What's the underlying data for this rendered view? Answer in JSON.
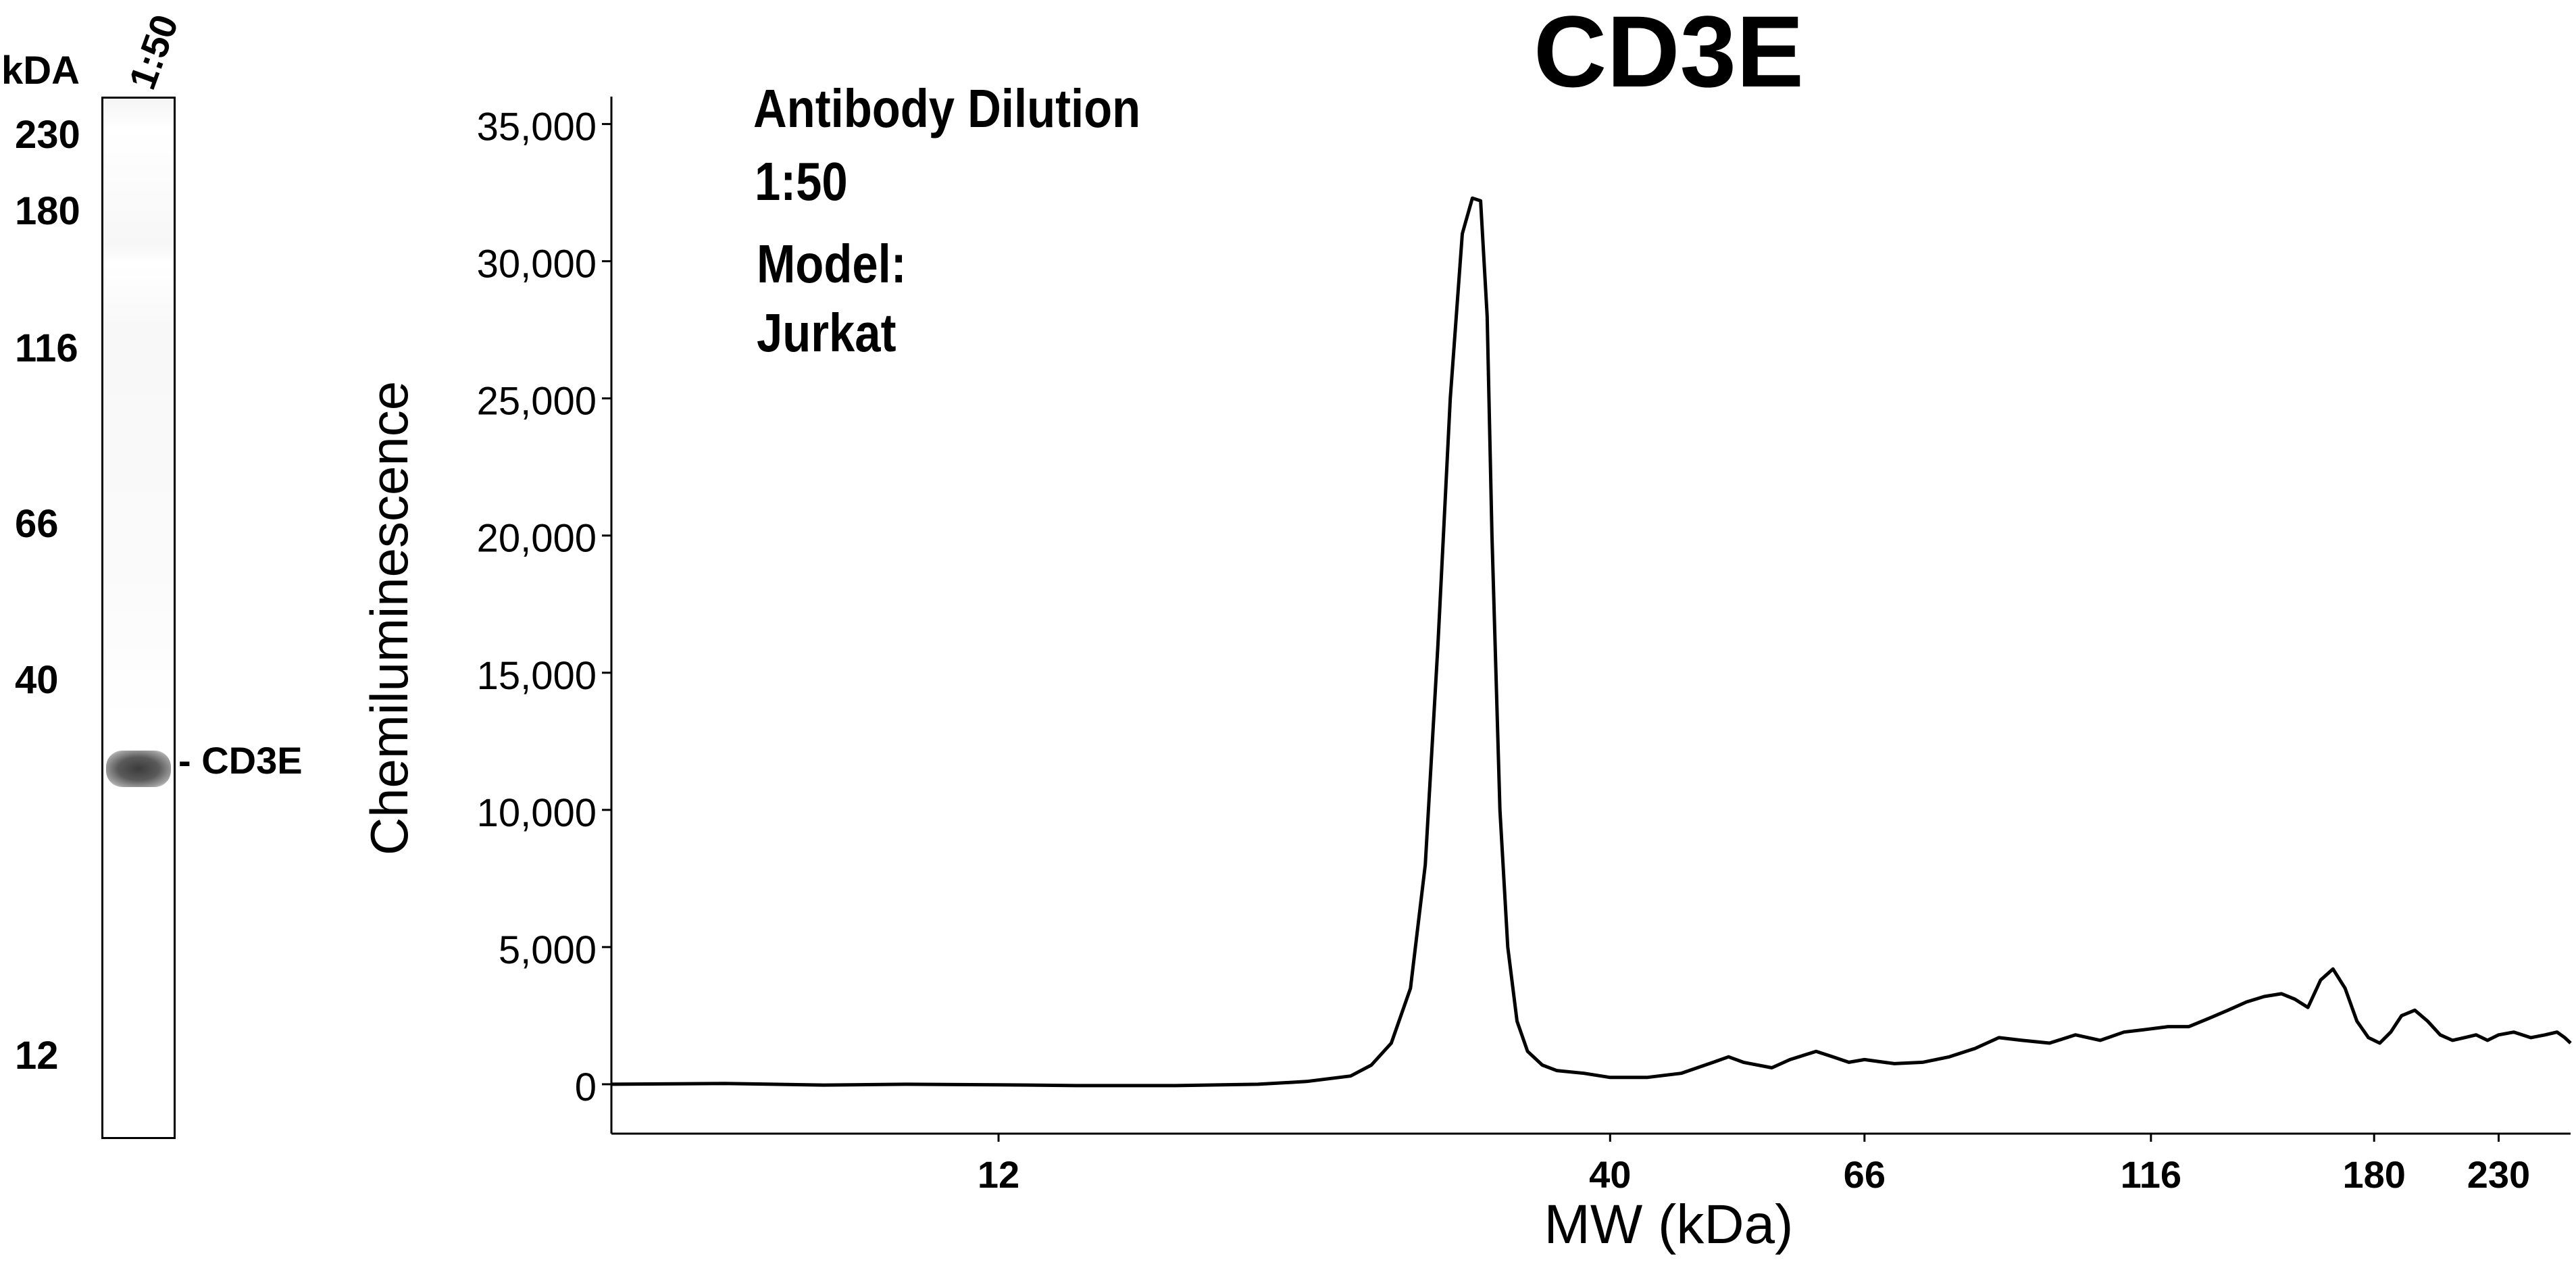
{
  "blot": {
    "unit_label": "kDA",
    "lane_label": "1:50",
    "ladder": [
      {
        "label": "230",
        "kda": 230
      },
      {
        "label": "180",
        "kda": 180
      },
      {
        "label": "116",
        "kda": 116
      },
      {
        "label": "66",
        "kda": 66
      },
      {
        "label": "40",
        "kda": 40
      },
      {
        "label": "12",
        "kda": 12
      }
    ],
    "band_label": "- CD3E"
  },
  "chart_data": {
    "type": "line",
    "title": "CD3E",
    "annotations": [
      "Antibody Dilution",
      "1:50",
      "Model:",
      "Jurkat"
    ],
    "xlabel": "MW (kDa)",
    "ylabel": "Chemiluminescence",
    "x_scale": "log",
    "xlim": [
      5.6,
      265
    ],
    "ylim": [
      -1800,
      36000
    ],
    "x_ticks": [
      {
        "label": "12",
        "value": 12
      },
      {
        "label": "40",
        "value": 40
      },
      {
        "label": "66",
        "value": 66
      },
      {
        "label": "116",
        "value": 116
      },
      {
        "label": "180",
        "value": 180
      },
      {
        "label": "230",
        "value": 230
      }
    ],
    "y_ticks": [
      {
        "label": "0",
        "value": 0
      },
      {
        "label": "5,000",
        "value": 5000
      },
      {
        "label": "10,000",
        "value": 10000
      },
      {
        "label": "15,000",
        "value": 15000
      },
      {
        "label": "20,000",
        "value": 20000
      },
      {
        "label": "25,000",
        "value": 25000
      },
      {
        "label": "30,000",
        "value": 30000
      },
      {
        "label": "35,000",
        "value": 35000
      }
    ],
    "grid": false,
    "line_color": "#000000",
    "series": [
      {
        "x": [
          5.6,
          7,
          8.5,
          10,
          12,
          14,
          17,
          20,
          22,
          24,
          25,
          26,
          27,
          27.8,
          28.5,
          29.2,
          29.9,
          30.5,
          31,
          31.4,
          31.7,
          32.2,
          32.7,
          33.3,
          34,
          35,
          36,
          38,
          40,
          43,
          46,
          49,
          50.5,
          52,
          55,
          57,
          60,
          62,
          64,
          66,
          70,
          74,
          78,
          82,
          86,
          90,
          95,
          100,
          105,
          110,
          115,
          120,
          125,
          130,
          135,
          140,
          145,
          150,
          154,
          158,
          162,
          166,
          170,
          174,
          178,
          182,
          186,
          190,
          195,
          200,
          205,
          210,
          215,
          220,
          225,
          230,
          237,
          245,
          252,
          258,
          262,
          265
        ],
        "y": [
          0,
          30,
          -30,
          0,
          -20,
          -50,
          -50,
          0,
          100,
          300,
          700,
          1500,
          3500,
          8000,
          16000,
          25000,
          31000,
          32300,
          32200,
          28000,
          20000,
          10000,
          5000,
          2300,
          1200,
          700,
          500,
          400,
          250,
          250,
          400,
          800,
          1000,
          800,
          600,
          900,
          1200,
          1000,
          800,
          900,
          750,
          800,
          1000,
          1300,
          1700,
          1600,
          1500,
          1800,
          1600,
          1900,
          2000,
          2100,
          2100,
          2400,
          2700,
          3000,
          3200,
          3300,
          3100,
          2800,
          3800,
          4200,
          3500,
          2300,
          1700,
          1500,
          1900,
          2500,
          2700,
          2300,
          1800,
          1600,
          1700,
          1800,
          1600,
          1800,
          1900,
          1700,
          1800,
          1900,
          1700,
          1500
        ]
      }
    ]
  }
}
